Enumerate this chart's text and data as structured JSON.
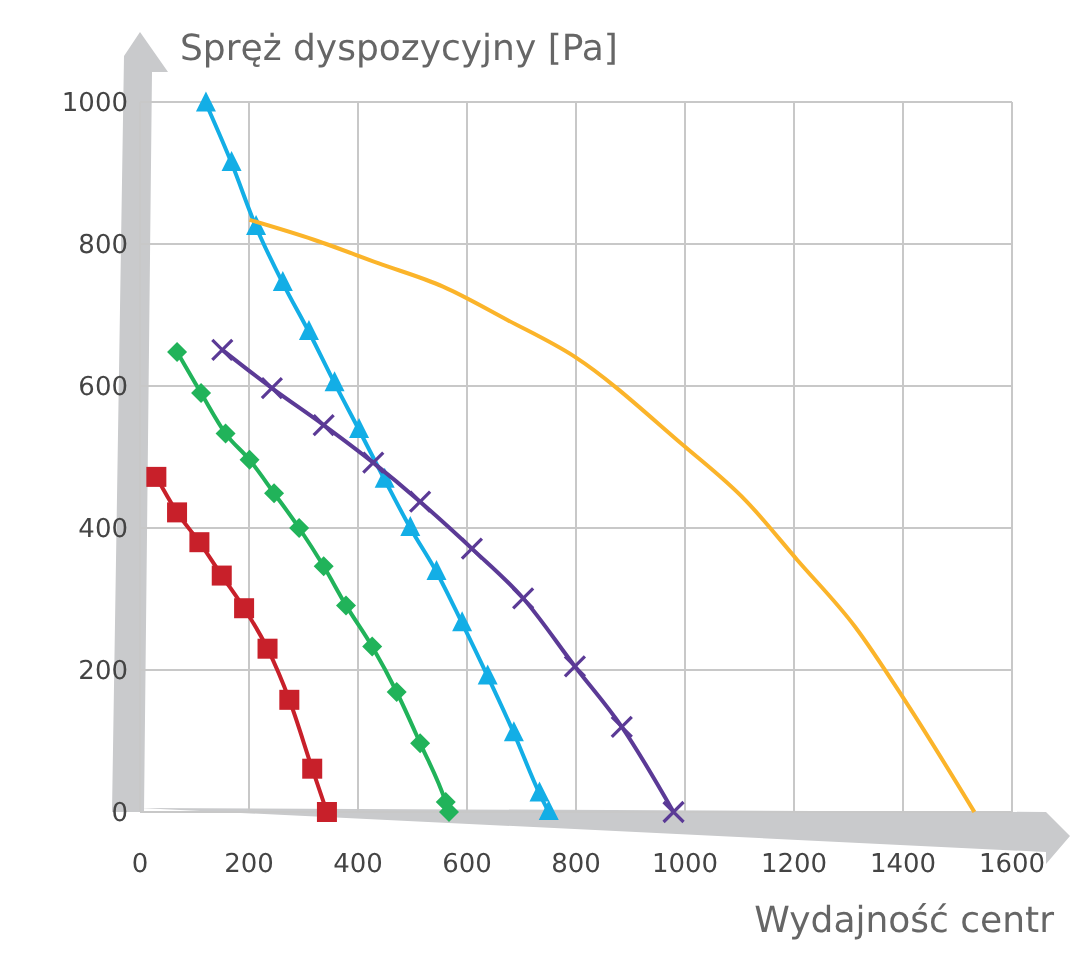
{
  "chart_data": {
    "type": "line",
    "xlabel": "Wydajność centr",
    "ylabel": "Spręż dyspozycyjny [Pa]",
    "xlim": [
      0,
      1600
    ],
    "ylim": [
      0,
      1000
    ],
    "xticks": [
      0,
      200,
      400,
      600,
      800,
      1000,
      1200,
      1400,
      1600
    ],
    "yticks": [
      0,
      200,
      400,
      600,
      800,
      1000
    ],
    "grid": true,
    "line_style": "solid",
    "series": [
      {
        "color": "#c8202a",
        "marker": "square",
        "x": [
          30,
          68,
          109,
          150,
          191,
          234,
          274,
          316,
          343
        ],
        "values": [
          472,
          422,
          380,
          333,
          287,
          230,
          158,
          61,
          0
        ]
      },
      {
        "color": "#21b35a",
        "marker": "diamond",
        "x": [
          68,
          112,
          157,
          201,
          246,
          292,
          337,
          378,
          426,
          471,
          514,
          561,
          567
        ],
        "values": [
          648,
          590,
          533,
          496,
          449,
          400,
          346,
          291,
          233,
          169,
          97,
          14,
          0
        ]
      },
      {
        "color": "#13aee6",
        "marker": "triangle",
        "x": [
          121,
          168,
          213,
          262,
          310,
          357,
          402,
          449,
          496,
          544,
          591,
          638,
          686,
          733,
          750
        ],
        "values": [
          998,
          914,
          824,
          745,
          676,
          604,
          538,
          468,
          400,
          338,
          266,
          191,
          111,
          26,
          0
        ]
      },
      {
        "color": "#5b3a96",
        "marker": "cross",
        "x": [
          151,
          242,
          337,
          428,
          514,
          609,
          703,
          798,
          884,
          979
        ],
        "values": [
          651,
          597,
          545,
          492,
          437,
          371,
          301,
          205,
          120,
          0
        ]
      },
      {
        "color": "#fbb42a",
        "marker": "none",
        "x": [
          201,
          319,
          437,
          556,
          674,
          798,
          993,
          1111,
          1206,
          1312,
          1407,
          1531
        ],
        "values": [
          834,
          806,
          773,
          740,
          693,
          641,
          519,
          439,
          355,
          261,
          153,
          0
        ]
      }
    ]
  }
}
